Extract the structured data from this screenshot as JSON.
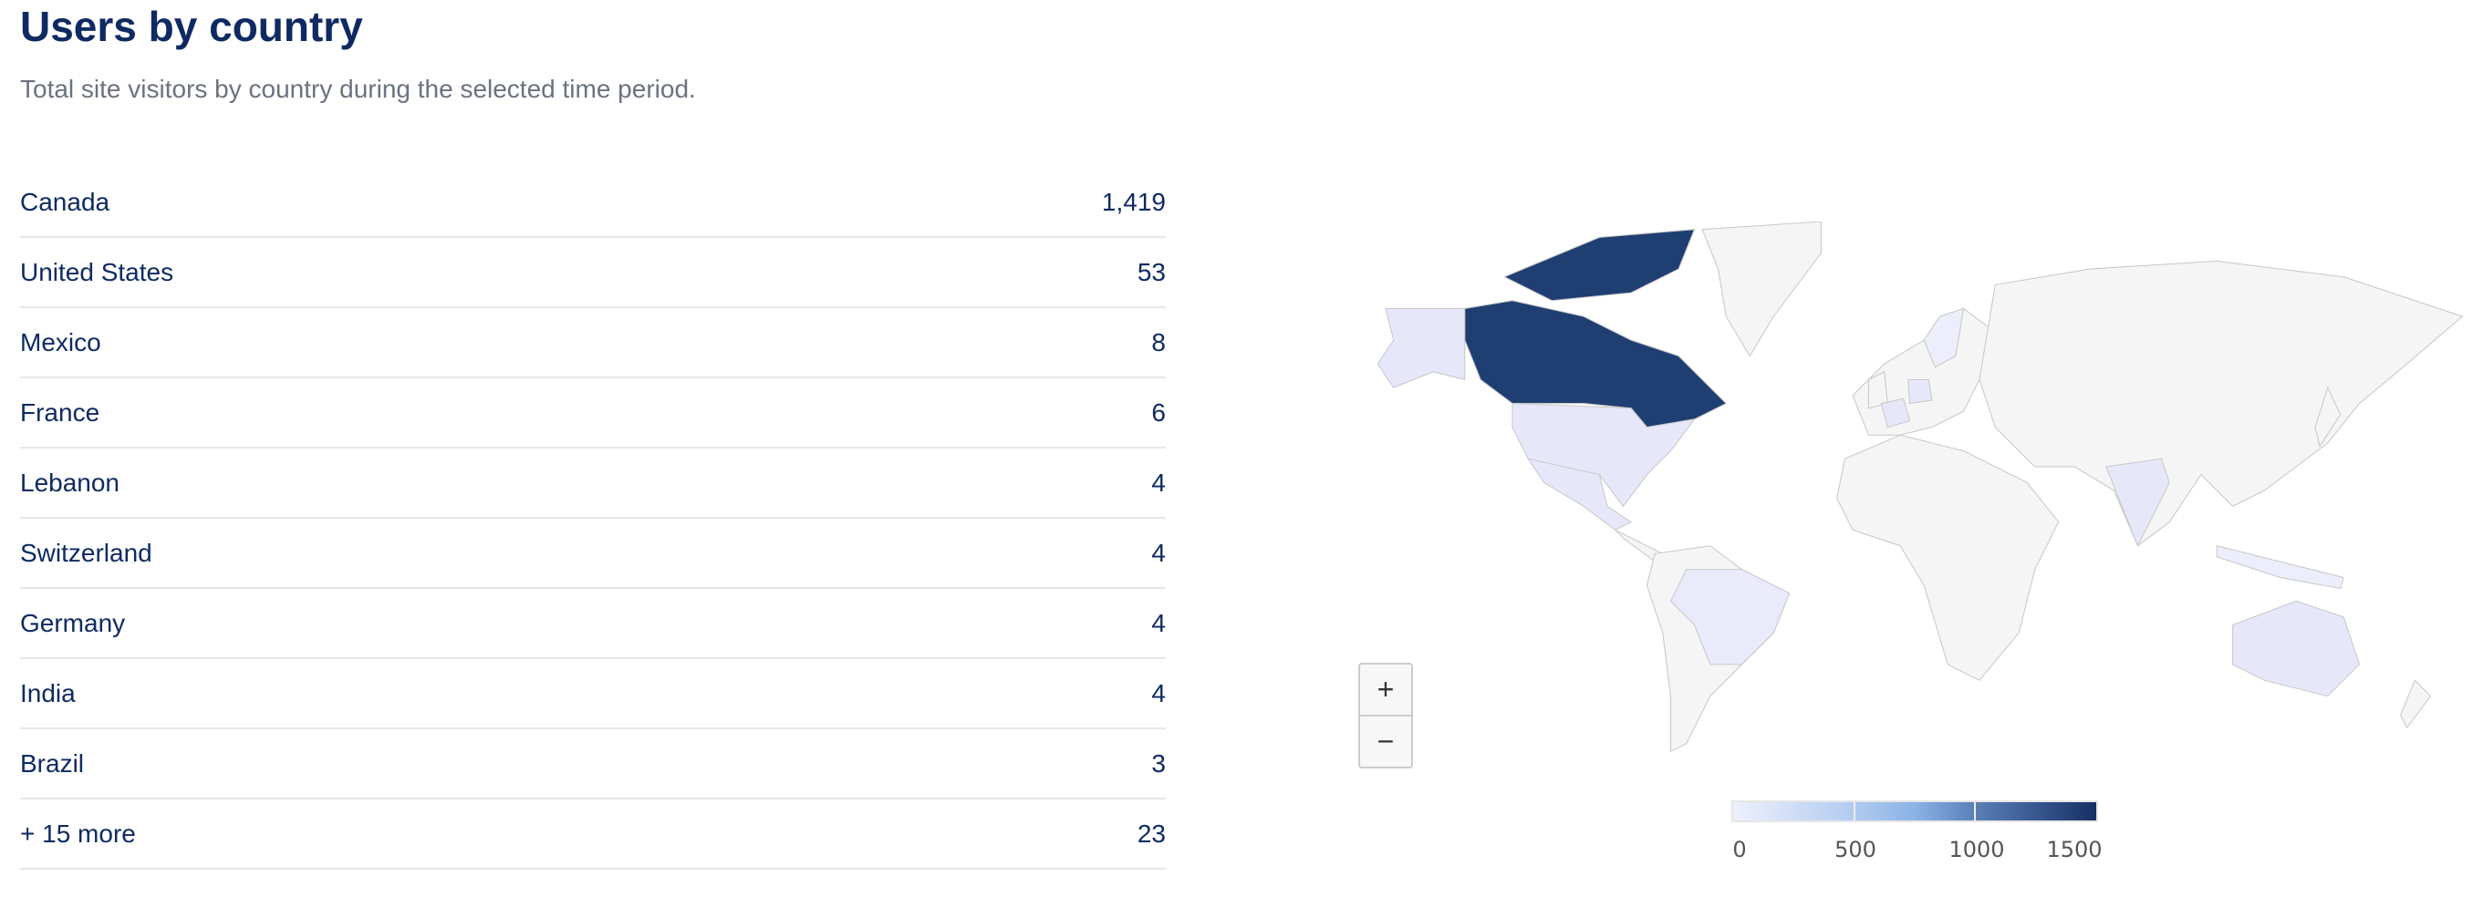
{
  "header": {
    "title": "Users by country",
    "subtitle": "Total site visitors by country during the selected time period."
  },
  "countries": [
    {
      "name": "Canada",
      "value": "1,419"
    },
    {
      "name": "United States",
      "value": "53"
    },
    {
      "name": "Mexico",
      "value": "8"
    },
    {
      "name": "France",
      "value": "6"
    },
    {
      "name": "Lebanon",
      "value": "4"
    },
    {
      "name": "Switzerland",
      "value": "4"
    },
    {
      "name": "Germany",
      "value": "4"
    },
    {
      "name": "India",
      "value": "4"
    },
    {
      "name": "Brazil",
      "value": "3"
    },
    {
      "name": "+ 15 more",
      "value": "23"
    }
  ],
  "map": {
    "zoom_in": "+",
    "zoom_out": "−",
    "colors": {
      "max": "#1f3f73",
      "low": "#e6e8fa",
      "none": "#f5f5f5",
      "border": "#c8c8c8"
    },
    "legend": {
      "ticks": [
        "0",
        "500",
        "1000",
        "1500"
      ]
    }
  }
}
